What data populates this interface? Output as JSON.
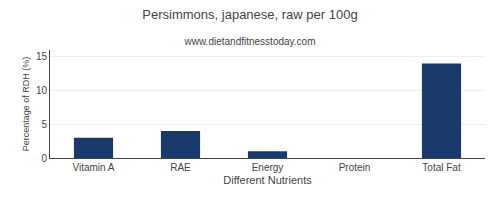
{
  "chart_data": {
    "type": "bar",
    "title": "Persimmons, japanese, raw per 100g",
    "subtitle": "www.dietandfitnesstoday.com",
    "xlabel": "Different Nutrients",
    "ylabel": "Percentage of RDH (%)",
    "categories": [
      "Vitamin A",
      "RAE",
      "Energy",
      "Protein",
      "Total Fat"
    ],
    "values": [
      3,
      4,
      1,
      0,
      14
    ],
    "color": "#1a3a6b",
    "ylim": [
      0,
      16
    ],
    "yticks": [
      0,
      5,
      10,
      15
    ],
    "grid": true
  }
}
